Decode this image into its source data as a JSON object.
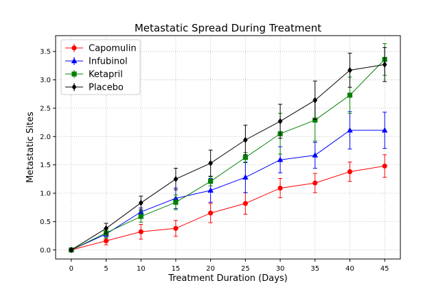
{
  "chart_data": {
    "type": "line",
    "title": "Metastatic Spread During Treatment",
    "xlabel": "Treatment Duration (Days)",
    "ylabel": "Metastatic Sites",
    "xlim": [
      -2.25,
      47.25
    ],
    "ylim": [
      -0.16,
      3.78
    ],
    "xticks": [
      0,
      5,
      10,
      15,
      20,
      25,
      30,
      35,
      40,
      45
    ],
    "yticks": [
      0.0,
      0.5,
      1.0,
      1.5,
      2.0,
      2.5,
      3.0,
      3.5
    ],
    "ytick_labels": [
      "0.0",
      "0.5",
      "1.0",
      "1.5",
      "2.0",
      "2.5",
      "3.0",
      "3.5"
    ],
    "grid": true,
    "legend_position": "top-left",
    "x": [
      0,
      5,
      10,
      15,
      20,
      25,
      30,
      35,
      40,
      45
    ],
    "series": [
      {
        "name": "Capomulin",
        "color": "#ff0000",
        "marker": "circle",
        "values": [
          0.0,
          0.16,
          0.32,
          0.38,
          0.65,
          0.82,
          1.09,
          1.18,
          1.38,
          1.48
        ],
        "errors": [
          0.0,
          0.07,
          0.13,
          0.14,
          0.17,
          0.19,
          0.17,
          0.17,
          0.17,
          0.2
        ]
      },
      {
        "name": "Infubinol",
        "color": "#0000ff",
        "marker": "triangle",
        "values": [
          0.0,
          0.28,
          0.67,
          0.91,
          1.05,
          1.28,
          1.59,
          1.67,
          2.11,
          2.11
        ],
        "errors": [
          0.0,
          0.05,
          0.07,
          0.18,
          0.21,
          0.27,
          0.23,
          0.23,
          0.33,
          0.32
        ]
      },
      {
        "name": "Ketapril",
        "color": "#008000",
        "marker": "square",
        "values": [
          0.0,
          0.3,
          0.59,
          0.84,
          1.21,
          1.63,
          2.05,
          2.29,
          2.73,
          3.36
        ],
        "errors": [
          0.0,
          0.09,
          0.1,
          0.13,
          0.08,
          0.09,
          0.36,
          0.37,
          0.32,
          0.28
        ]
      },
      {
        "name": "Placebo",
        "color": "#000000",
        "marker": "diamond",
        "values": [
          0.0,
          0.38,
          0.83,
          1.25,
          1.53,
          1.94,
          2.27,
          2.64,
          3.17,
          3.27
        ],
        "errors": [
          0.0,
          0.09,
          0.12,
          0.19,
          0.23,
          0.26,
          0.3,
          0.34,
          0.3,
          0.3
        ]
      }
    ]
  }
}
